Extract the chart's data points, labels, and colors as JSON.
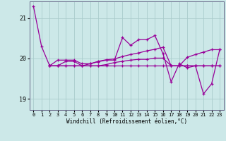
{
  "xlabel": "Windchill (Refroidissement éolien,°C)",
  "background_color": "#cce8e8",
  "grid_color": "#aacccc",
  "line_color": "#990099",
  "xlim": [
    -0.5,
    23.5
  ],
  "ylim": [
    18.72,
    21.42
  ],
  "yticks": [
    19,
    20,
    21
  ],
  "xticks": [
    0,
    1,
    2,
    3,
    4,
    5,
    6,
    7,
    8,
    9,
    10,
    11,
    12,
    13,
    14,
    15,
    16,
    17,
    18,
    19,
    20,
    21,
    22,
    23
  ],
  "series": [
    {
      "x": [
        0,
        1,
        2,
        3,
        4,
        5,
        6,
        7,
        8,
        9,
        10,
        11,
        12,
        13,
        14,
        15,
        16,
        17,
        18,
        19,
        20,
        21,
        22,
        23
      ],
      "y": [
        21.3,
        20.3,
        19.82,
        19.82,
        19.93,
        19.93,
        19.82,
        19.87,
        19.93,
        19.97,
        19.99,
        20.05,
        20.1,
        20.14,
        20.19,
        20.23,
        20.28,
        19.82,
        19.82,
        20.03,
        20.1,
        20.16,
        20.22,
        20.22
      ]
    },
    {
      "x": [
        2,
        3,
        4,
        5,
        6,
        7,
        8,
        9,
        10,
        11,
        12,
        13,
        14,
        15,
        16,
        17,
        18,
        19,
        20,
        21,
        22,
        23
      ],
      "y": [
        19.82,
        19.82,
        19.82,
        19.82,
        19.82,
        19.82,
        19.82,
        19.82,
        19.82,
        19.82,
        19.82,
        19.82,
        19.82,
        19.82,
        19.82,
        19.82,
        19.82,
        19.82,
        19.82,
        19.82,
        19.82,
        19.82
      ]
    },
    {
      "x": [
        2,
        3,
        4,
        5,
        6,
        7,
        8,
        9,
        10,
        11,
        12,
        13,
        14,
        15,
        16,
        17,
        18,
        19,
        20,
        21,
        22,
        23
      ],
      "y": [
        19.82,
        19.96,
        19.96,
        19.96,
        19.87,
        19.87,
        19.92,
        19.96,
        19.96,
        20.52,
        20.33,
        20.47,
        20.47,
        20.57,
        20.12,
        19.42,
        19.87,
        19.77,
        19.82,
        19.12,
        19.37,
        20.22
      ]
    },
    {
      "x": [
        2,
        3,
        4,
        5,
        6,
        7,
        8,
        9,
        10,
        11,
        12,
        13,
        14,
        15,
        16,
        17,
        18,
        19,
        20,
        21,
        22,
        23
      ],
      "y": [
        19.82,
        19.82,
        19.82,
        19.82,
        19.82,
        19.82,
        19.82,
        19.85,
        19.9,
        19.93,
        19.96,
        19.98,
        19.98,
        20.01,
        20.01,
        19.82,
        19.82,
        19.82,
        19.82,
        19.82,
        19.82,
        19.82
      ]
    }
  ]
}
